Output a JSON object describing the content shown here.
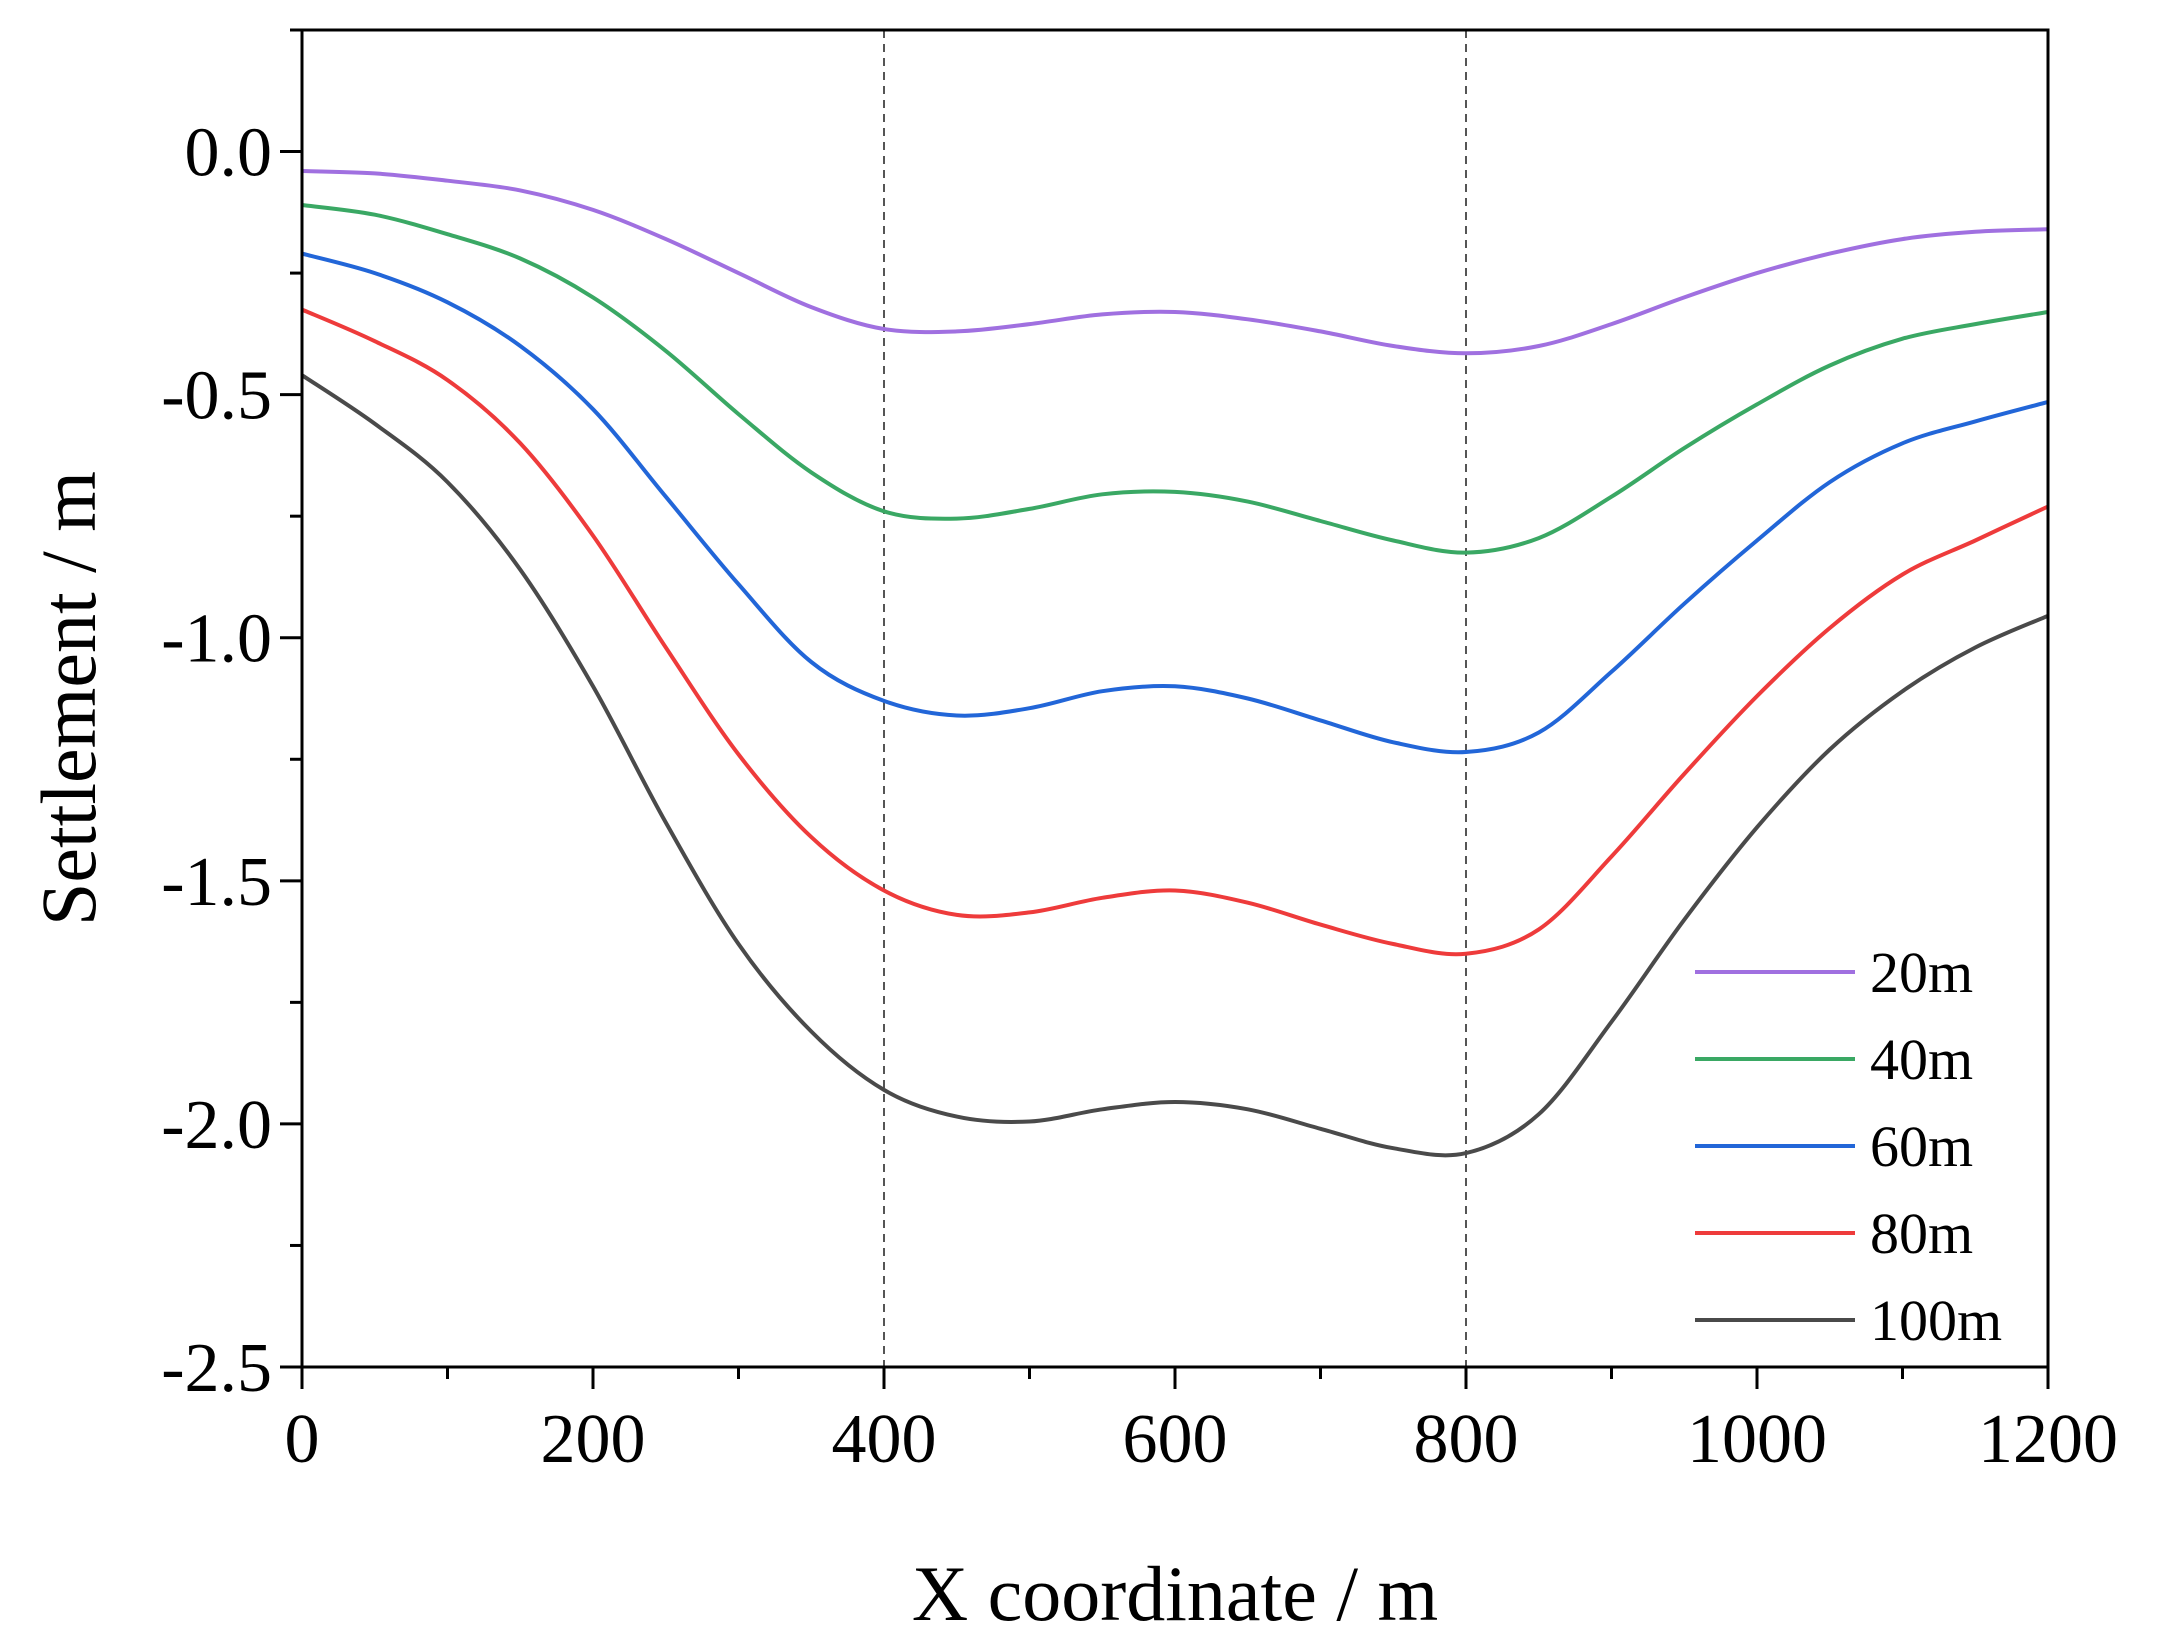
{
  "chart_data": {
    "type": "line",
    "title": "",
    "xlabel": "X coordinate / m",
    "ylabel": "Settlement / m",
    "xlim": [
      0,
      1200
    ],
    "ylim": [
      -2.5,
      0.25
    ],
    "x_ticks": [
      0,
      200,
      400,
      600,
      800,
      1000,
      1200
    ],
    "x_tick_labels": [
      "0",
      "200",
      "400",
      "600",
      "800",
      "1000",
      "1200"
    ],
    "y_ticks": [
      0.0,
      -0.5,
      -1.0,
      -1.5,
      -2.0,
      -2.5
    ],
    "y_tick_labels": [
      "0.0",
      "-0.5",
      "-1.0",
      "-1.5",
      "-2.0",
      "-2.5"
    ],
    "reference_lines_x": [
      400,
      800
    ],
    "grid": false,
    "legend_position": "bottom-right",
    "x": [
      0,
      50,
      100,
      150,
      200,
      250,
      300,
      350,
      400,
      450,
      500,
      550,
      600,
      650,
      700,
      750,
      800,
      850,
      900,
      950,
      1000,
      1050,
      1100,
      1150,
      1200
    ],
    "series": [
      {
        "name": "20m",
        "color": "#a070e0",
        "values": [
          -0.04,
          -0.045,
          -0.06,
          -0.08,
          -0.12,
          -0.18,
          -0.25,
          -0.32,
          -0.365,
          -0.37,
          -0.355,
          -0.335,
          -0.33,
          -0.345,
          -0.37,
          -0.4,
          -0.415,
          -0.4,
          -0.355,
          -0.3,
          -0.25,
          -0.21,
          -0.18,
          -0.165,
          -0.16
        ]
      },
      {
        "name": "40m",
        "color": "#3aa864",
        "values": [
          -0.11,
          -0.13,
          -0.17,
          -0.22,
          -0.3,
          -0.41,
          -0.54,
          -0.66,
          -0.74,
          -0.755,
          -0.735,
          -0.705,
          -0.7,
          -0.72,
          -0.76,
          -0.8,
          -0.825,
          -0.795,
          -0.71,
          -0.61,
          -0.52,
          -0.44,
          -0.385,
          -0.355,
          -0.33
        ]
      },
      {
        "name": "60m",
        "color": "#2266d8",
        "values": [
          -0.21,
          -0.25,
          -0.31,
          -0.4,
          -0.53,
          -0.71,
          -0.89,
          -1.05,
          -1.13,
          -1.16,
          -1.145,
          -1.11,
          -1.1,
          -1.125,
          -1.17,
          -1.215,
          -1.235,
          -1.195,
          -1.07,
          -0.93,
          -0.8,
          -0.68,
          -0.6,
          -0.555,
          -0.515
        ]
      },
      {
        "name": "80m",
        "color": "#ee3b3b",
        "values": [
          -0.325,
          -0.39,
          -0.47,
          -0.6,
          -0.79,
          -1.02,
          -1.24,
          -1.41,
          -1.52,
          -1.57,
          -1.565,
          -1.535,
          -1.52,
          -1.545,
          -1.59,
          -1.63,
          -1.65,
          -1.6,
          -1.45,
          -1.28,
          -1.12,
          -0.98,
          -0.87,
          -0.8,
          -0.73
        ]
      },
      {
        "name": "100m",
        "color": "#4a4a4a",
        "values": [
          -0.46,
          -0.56,
          -0.68,
          -0.86,
          -1.1,
          -1.38,
          -1.63,
          -1.81,
          -1.93,
          -1.985,
          -1.995,
          -1.97,
          -1.955,
          -1.97,
          -2.01,
          -2.05,
          -2.06,
          -1.98,
          -1.79,
          -1.58,
          -1.39,
          -1.23,
          -1.11,
          -1.02,
          -0.955
        ]
      }
    ]
  }
}
